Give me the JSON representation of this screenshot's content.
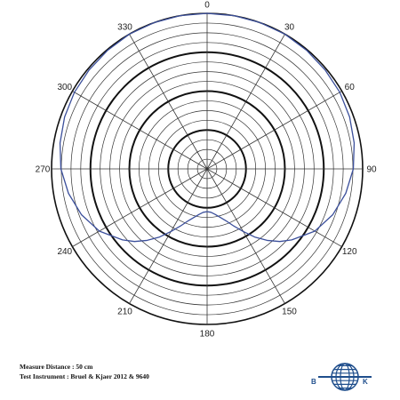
{
  "chart_data": {
    "type": "polar-line",
    "title": "",
    "angle_labels": [
      "0",
      "30",
      "60",
      "90",
      "120",
      "150",
      "180",
      "210",
      "240",
      "270",
      "300",
      "330"
    ],
    "angle_step_deg": 30,
    "radial_rings": 16,
    "bold_rings": [
      4,
      8,
      12,
      16
    ],
    "radial_lines_every_deg": 30,
    "series": [
      {
        "color": "#3b4f9b",
        "theta": [
          0,
          10,
          20,
          30,
          40,
          50,
          60,
          70,
          80,
          90,
          100,
          110,
          120,
          125,
          130,
          135,
          140,
          145,
          150,
          155,
          160,
          165,
          170,
          175,
          180,
          185,
          190,
          195,
          200,
          205,
          210,
          215,
          220,
          225,
          230,
          235,
          240,
          250,
          260,
          270,
          280,
          290,
          300,
          310,
          320,
          330,
          340,
          350,
          360
        ],
        "r": [
          1.0,
          1.0,
          1.0,
          1.0,
          0.995,
          0.99,
          0.985,
          0.975,
          0.96,
          0.94,
          0.905,
          0.86,
          0.8,
          0.75,
          0.71,
          0.66,
          0.6,
          0.535,
          0.465,
          0.405,
          0.355,
          0.322,
          0.297,
          0.28,
          0.275,
          0.28,
          0.297,
          0.322,
          0.355,
          0.405,
          0.465,
          0.535,
          0.6,
          0.66,
          0.71,
          0.75,
          0.8,
          0.86,
          0.905,
          0.94,
          0.96,
          0.975,
          0.985,
          0.99,
          0.995,
          1.0,
          1.0,
          1.0,
          1.0
        ]
      }
    ],
    "grid": true
  },
  "caption": {
    "line1": "Measure Distance : 50 cm",
    "line2": "Test Instrument : Bruel & Kjaer 2012 & 9640"
  },
  "logo": {
    "letter_left": "B",
    "letter_right": "K",
    "icon": "globe-logo-icon",
    "color": "#1f4e8c"
  }
}
